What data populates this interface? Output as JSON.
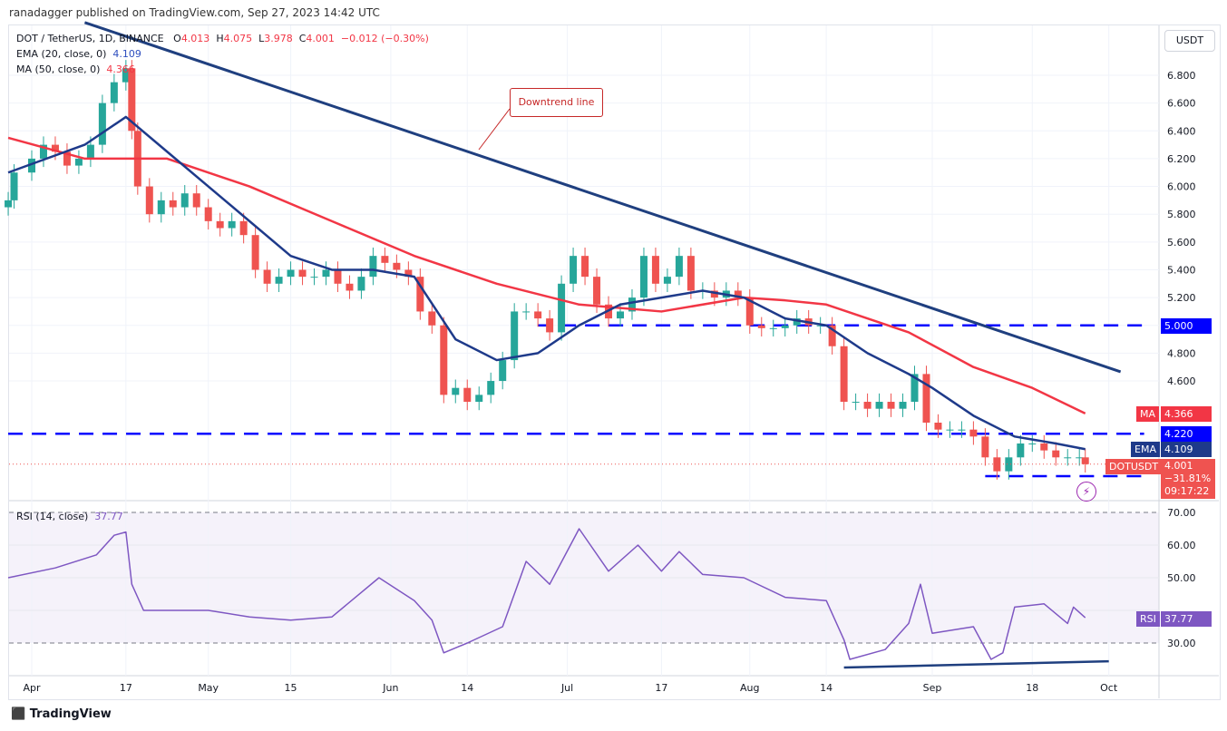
{
  "header": {
    "published": "ranadagger published on TradingView.com, Sep 27, 2023 14:42 UTC"
  },
  "legend": {
    "symbol": "DOT / TetherUS, 1D, BINANCE",
    "o_label": "O",
    "o": "4.013",
    "h_label": "H",
    "h": "4.075",
    "l_label": "L",
    "l": "3.978",
    "c_label": "C",
    "c": "4.001",
    "change": "−0.012 (−0.30%)",
    "ema_label": "EMA (20, close, 0)",
    "ema": "4.109",
    "ma_label": "MA (50, close, 0)",
    "ma": "4.366",
    "rsi_label": "RSI (14, close)",
    "rsi": "37.77"
  },
  "axis": {
    "currency": "USDT",
    "ema_tag": "EMA",
    "ma_tag": "MA",
    "price_tag": "DOTUSDT",
    "rsi_tag": "RSI",
    "last_price": "4.001",
    "last_change": "−31.81%",
    "countdown": "09:17:22",
    "level_4220": "4.220",
    "level_5000": "5.000",
    "ma_value": "4.366",
    "ema_value": "4.109",
    "rsi_value": "37.77"
  },
  "annotation": {
    "downtrend": "Downtrend line"
  },
  "brand": "TradingView",
  "colors": {
    "up": "#26a69a",
    "down": "#ef5350",
    "ema": "#1e3a8a",
    "ma": "#f23645",
    "trend": "#1f3f7f",
    "level": "#0000ff",
    "rsi": "#7e57c2"
  },
  "chart_data": [
    {
      "type": "candlestick",
      "title": "DOT / TetherUS, 1D, BINANCE",
      "ylim": [
        3.8,
        7.2
      ],
      "yticks": [
        4.6,
        4.8,
        5.0,
        5.2,
        5.4,
        5.6,
        5.8,
        6.0,
        6.2,
        6.4,
        6.6,
        6.8
      ],
      "xticks": [
        {
          "date": "2023-04-01",
          "label": "Apr"
        },
        {
          "date": "2023-04-17",
          "label": "17"
        },
        {
          "date": "2023-05-01",
          "label": "May"
        },
        {
          "date": "2023-05-15",
          "label": "15"
        },
        {
          "date": "2023-06-01",
          "label": "Jun"
        },
        {
          "date": "2023-06-14",
          "label": "14"
        },
        {
          "date": "2023-07-01",
          "label": "Jul"
        },
        {
          "date": "2023-07-17",
          "label": "17"
        },
        {
          "date": "2023-08-01",
          "label": "Aug"
        },
        {
          "date": "2023-08-14",
          "label": "14"
        },
        {
          "date": "2023-09-01",
          "label": "Sep"
        },
        {
          "date": "2023-09-18",
          "label": "18"
        },
        {
          "date": "2023-10-01",
          "label": "Oct"
        }
      ],
      "closes": [
        [
          "2023-03-28",
          5.9
        ],
        [
          "2023-03-29",
          6.1
        ],
        [
          "2023-04-01",
          6.2
        ],
        [
          "2023-04-03",
          6.3
        ],
        [
          "2023-04-05",
          6.25
        ],
        [
          "2023-04-07",
          6.15
        ],
        [
          "2023-04-09",
          6.2
        ],
        [
          "2023-04-11",
          6.3
        ],
        [
          "2023-04-13",
          6.6
        ],
        [
          "2023-04-15",
          6.75
        ],
        [
          "2023-04-17",
          6.85
        ],
        [
          "2023-04-18",
          6.4
        ],
        [
          "2023-04-19",
          6.0
        ],
        [
          "2023-04-21",
          5.8
        ],
        [
          "2023-04-23",
          5.9
        ],
        [
          "2023-04-25",
          5.85
        ],
        [
          "2023-04-27",
          5.95
        ],
        [
          "2023-04-29",
          5.85
        ],
        [
          "2023-05-01",
          5.75
        ],
        [
          "2023-05-03",
          5.7
        ],
        [
          "2023-05-05",
          5.75
        ],
        [
          "2023-05-07",
          5.65
        ],
        [
          "2023-05-09",
          5.4
        ],
        [
          "2023-05-11",
          5.3
        ],
        [
          "2023-05-13",
          5.35
        ],
        [
          "2023-05-15",
          5.4
        ],
        [
          "2023-05-17",
          5.35
        ],
        [
          "2023-05-19",
          5.35
        ],
        [
          "2023-05-21",
          5.4
        ],
        [
          "2023-05-23",
          5.3
        ],
        [
          "2023-05-25",
          5.25
        ],
        [
          "2023-05-27",
          5.35
        ],
        [
          "2023-05-29",
          5.5
        ],
        [
          "2023-05-31",
          5.45
        ],
        [
          "2023-06-02",
          5.4
        ],
        [
          "2023-06-04",
          5.35
        ],
        [
          "2023-06-06",
          5.1
        ],
        [
          "2023-06-08",
          5.0
        ],
        [
          "2023-06-10",
          4.5
        ],
        [
          "2023-06-12",
          4.55
        ],
        [
          "2023-06-14",
          4.45
        ],
        [
          "2023-06-16",
          4.5
        ],
        [
          "2023-06-18",
          4.6
        ],
        [
          "2023-06-20",
          4.75
        ],
        [
          "2023-06-22",
          5.1
        ],
        [
          "2023-06-24",
          5.1
        ],
        [
          "2023-06-26",
          5.05
        ],
        [
          "2023-06-28",
          4.95
        ],
        [
          "2023-06-30",
          5.3
        ],
        [
          "2023-07-02",
          5.5
        ],
        [
          "2023-07-04",
          5.35
        ],
        [
          "2023-07-06",
          5.15
        ],
        [
          "2023-07-08",
          5.05
        ],
        [
          "2023-07-10",
          5.1
        ],
        [
          "2023-07-12",
          5.2
        ],
        [
          "2023-07-14",
          5.5
        ],
        [
          "2023-07-16",
          5.3
        ],
        [
          "2023-07-18",
          5.35
        ],
        [
          "2023-07-20",
          5.5
        ],
        [
          "2023-07-22",
          5.25
        ],
        [
          "2023-07-24",
          5.25
        ],
        [
          "2023-07-26",
          5.2
        ],
        [
          "2023-07-28",
          5.25
        ],
        [
          "2023-07-30",
          5.2
        ],
        [
          "2023-08-01",
          5.0
        ],
        [
          "2023-08-03",
          4.98
        ],
        [
          "2023-08-05",
          4.98
        ],
        [
          "2023-08-07",
          5.0
        ],
        [
          "2023-08-09",
          5.05
        ],
        [
          "2023-08-11",
          5.0
        ],
        [
          "2023-08-13",
          5.0
        ],
        [
          "2023-08-15",
          4.85
        ],
        [
          "2023-08-17",
          4.45
        ],
        [
          "2023-08-19",
          4.45
        ],
        [
          "2023-08-21",
          4.4
        ],
        [
          "2023-08-23",
          4.45
        ],
        [
          "2023-08-25",
          4.4
        ],
        [
          "2023-08-27",
          4.45
        ],
        [
          "2023-08-29",
          4.65
        ],
        [
          "2023-08-31",
          4.3
        ],
        [
          "2023-09-02",
          4.25
        ],
        [
          "2023-09-04",
          4.25
        ],
        [
          "2023-09-06",
          4.25
        ],
        [
          "2023-09-08",
          4.2
        ],
        [
          "2023-09-10",
          4.05
        ],
        [
          "2023-09-12",
          3.95
        ],
        [
          "2023-09-14",
          4.05
        ],
        [
          "2023-09-16",
          4.15
        ],
        [
          "2023-09-18",
          4.15
        ],
        [
          "2023-09-20",
          4.1
        ],
        [
          "2023-09-22",
          4.05
        ],
        [
          "2023-09-24",
          4.05
        ],
        [
          "2023-09-26",
          4.05
        ],
        [
          "2023-09-27",
          4.001
        ]
      ],
      "series": [
        {
          "name": "EMA (20, close, 0)",
          "points": [
            [
              "2023-03-28",
              6.1
            ],
            [
              "2023-04-10",
              6.3
            ],
            [
              "2023-04-17",
              6.5
            ],
            [
              "2023-04-24",
              6.25
            ],
            [
              "2023-05-01",
              6.0
            ],
            [
              "2023-05-08",
              5.75
            ],
            [
              "2023-05-15",
              5.5
            ],
            [
              "2023-05-22",
              5.4
            ],
            [
              "2023-05-29",
              5.4
            ],
            [
              "2023-06-05",
              5.35
            ],
            [
              "2023-06-12",
              4.9
            ],
            [
              "2023-06-19",
              4.75
            ],
            [
              "2023-06-26",
              4.8
            ],
            [
              "2023-07-03",
              5.0
            ],
            [
              "2023-07-10",
              5.15
            ],
            [
              "2023-07-17",
              5.2
            ],
            [
              "2023-07-24",
              5.25
            ],
            [
              "2023-07-31",
              5.2
            ],
            [
              "2023-08-07",
              5.05
            ],
            [
              "2023-08-14",
              5.0
            ],
            [
              "2023-08-21",
              4.8
            ],
            [
              "2023-08-28",
              4.65
            ],
            [
              "2023-09-01",
              4.55
            ],
            [
              "2023-09-08",
              4.35
            ],
            [
              "2023-09-15",
              4.2
            ],
            [
              "2023-09-22",
              4.15
            ],
            [
              "2023-09-27",
              4.109
            ]
          ]
        },
        {
          "name": "MA (50, close, 0)",
          "points": [
            [
              "2023-03-28",
              6.35
            ],
            [
              "2023-04-10",
              6.2
            ],
            [
              "2023-04-24",
              6.2
            ],
            [
              "2023-05-08",
              6.0
            ],
            [
              "2023-05-22",
              5.75
            ],
            [
              "2023-06-05",
              5.5
            ],
            [
              "2023-06-19",
              5.3
            ],
            [
              "2023-07-03",
              5.15
            ],
            [
              "2023-07-17",
              5.1
            ],
            [
              "2023-07-31",
              5.2
            ],
            [
              "2023-08-07",
              5.18
            ],
            [
              "2023-08-14",
              5.15
            ],
            [
              "2023-08-28",
              4.95
            ],
            [
              "2023-09-08",
              4.7
            ],
            [
              "2023-09-18",
              4.55
            ],
            [
              "2023-09-27",
              4.366
            ]
          ]
        }
      ],
      "drawings": {
        "trendline": [
          [
            "2023-04-10",
            7.18
          ],
          [
            "2023-10-03",
            4.666
          ]
        ],
        "levels": [
          {
            "value": 4.22,
            "from": "2023-03-28",
            "to": "2023-10-07"
          },
          {
            "value": 5.0,
            "from": "2023-06-26",
            "to": "2023-10-07"
          },
          {
            "value": 3.915,
            "from": "2023-09-10",
            "to": "2023-10-07"
          }
        ]
      }
    },
    {
      "type": "line",
      "title": "RSI (14, close)",
      "ylim": [
        20,
        73
      ],
      "yticks": [
        30,
        40,
        50,
        60,
        70
      ],
      "bands": [
        30,
        70
      ],
      "points": [
        [
          "2023-03-28",
          50
        ],
        [
          "2023-04-05",
          53
        ],
        [
          "2023-04-12",
          57
        ],
        [
          "2023-04-15",
          63
        ],
        [
          "2023-04-17",
          64
        ],
        [
          "2023-04-18",
          48
        ],
        [
          "2023-04-20",
          40
        ],
        [
          "2023-05-01",
          40
        ],
        [
          "2023-05-08",
          38
        ],
        [
          "2023-05-15",
          37
        ],
        [
          "2023-05-22",
          38
        ],
        [
          "2023-05-30",
          50
        ],
        [
          "2023-06-05",
          43
        ],
        [
          "2023-06-08",
          37
        ],
        [
          "2023-06-10",
          27
        ],
        [
          "2023-06-14",
          30
        ],
        [
          "2023-06-20",
          35
        ],
        [
          "2023-06-24",
          55
        ],
        [
          "2023-06-28",
          48
        ],
        [
          "2023-07-03",
          65
        ],
        [
          "2023-07-08",
          52
        ],
        [
          "2023-07-13",
          60
        ],
        [
          "2023-07-17",
          52
        ],
        [
          "2023-07-20",
          58
        ],
        [
          "2023-07-24",
          51
        ],
        [
          "2023-07-31",
          50
        ],
        [
          "2023-08-07",
          44
        ],
        [
          "2023-08-14",
          43
        ],
        [
          "2023-08-17",
          31
        ],
        [
          "2023-08-18",
          25
        ],
        [
          "2023-08-24",
          28
        ],
        [
          "2023-08-28",
          36
        ],
        [
          "2023-08-30",
          48
        ],
        [
          "2023-09-01",
          33
        ],
        [
          "2023-09-08",
          35
        ],
        [
          "2023-09-11",
          25
        ],
        [
          "2023-09-13",
          27
        ],
        [
          "2023-09-15",
          41
        ],
        [
          "2023-09-20",
          42
        ],
        [
          "2023-09-24",
          36
        ],
        [
          "2023-09-25",
          41
        ],
        [
          "2023-09-27",
          37.77
        ]
      ],
      "divergence_line": [
        [
          "2023-08-17",
          22.5
        ],
        [
          "2023-10-01",
          24.4
        ]
      ]
    }
  ]
}
